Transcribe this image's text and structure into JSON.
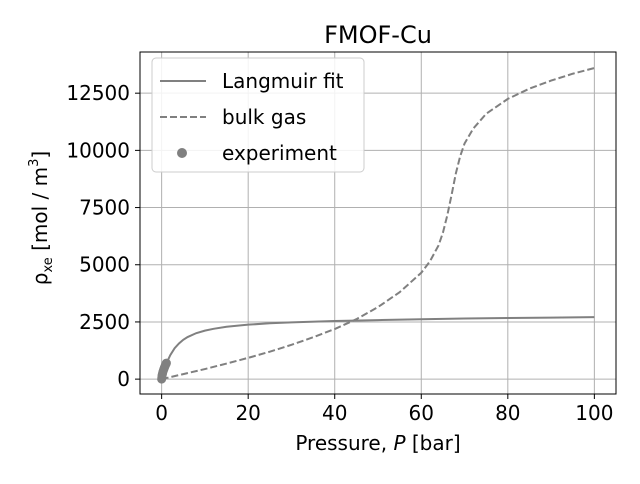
{
  "chart_data": {
    "type": "line",
    "title": "FMOF-Cu",
    "xlabel_prefix": "Pressure, ",
    "xlabel_var": "P",
    "xlabel_suffix": " [bar]",
    "ylabel_symbol": "ρ",
    "ylabel_subscript": "xe",
    "ylabel_text": " [mol / m",
    "ylabel_sup": "3",
    "ylabel_close": "]",
    "xlim": [
      -5,
      105
    ],
    "ylim": [
      -650,
      14300
    ],
    "xticks": [
      0,
      20,
      40,
      60,
      80,
      100
    ],
    "yticks": [
      0,
      2500,
      5000,
      7500,
      10000,
      12500
    ],
    "grid": true,
    "legend_position": "upper-left",
    "colors": {
      "series": "#808080",
      "grid": "#b0b0b0",
      "axes": "#000000"
    },
    "series": [
      {
        "name": "Langmuir fit",
        "style": "solid",
        "x": [
          0,
          0.5,
          1,
          2,
          3,
          4,
          5,
          6,
          8,
          10,
          12,
          15,
          20,
          25,
          30,
          40,
          50,
          60,
          70,
          80,
          90,
          100
        ],
        "y": [
          0,
          360,
          650,
          1050,
          1350,
          1560,
          1720,
          1840,
          2010,
          2120,
          2200,
          2290,
          2380,
          2440,
          2480,
          2540,
          2580,
          2620,
          2650,
          2670,
          2690,
          2710
        ]
      },
      {
        "name": "bulk gas",
        "style": "dashed",
        "x": [
          0,
          5,
          10,
          15,
          20,
          25,
          30,
          35,
          40,
          45,
          50,
          55,
          60,
          62,
          64,
          65,
          66,
          67,
          68,
          69,
          70,
          72,
          75,
          80,
          85,
          90,
          95,
          100
        ],
        "y": [
          0,
          220,
          440,
          680,
          930,
          1200,
          1500,
          1830,
          2190,
          2620,
          3150,
          3800,
          4650,
          5150,
          5850,
          6400,
          7150,
          8050,
          9000,
          9750,
          10300,
          10950,
          11600,
          12250,
          12700,
          13050,
          13350,
          13600
        ]
      },
      {
        "name": "experiment",
        "style": "markers",
        "x": [
          0,
          0.05,
          0.1,
          0.15,
          0.2,
          0.3,
          0.4,
          0.5,
          0.6,
          0.7,
          0.8,
          0.9,
          1.0,
          1.1
        ],
        "y": [
          0,
          80,
          150,
          200,
          250,
          320,
          380,
          430,
          480,
          530,
          580,
          620,
          660,
          700
        ]
      }
    ]
  }
}
